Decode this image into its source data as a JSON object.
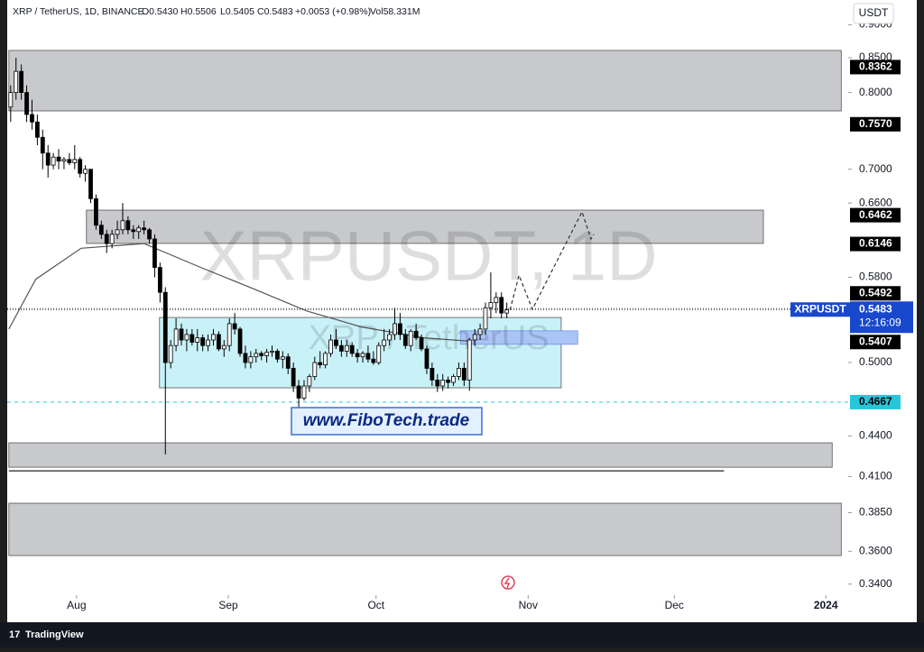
{
  "header": {
    "symbol": "XRP / TetherUS, 1D, BINANCE",
    "open": "O0.5430",
    "high": "H0.5506",
    "low": "L0.5405",
    "close": "C0.5483",
    "change": "+0.0053 (+0.98%)",
    "volume": "Vol58.331M"
  },
  "currency": "USDT",
  "footer": "TradingView",
  "promo": "www.FiboTech.trade",
  "chart_data": {
    "type": "candlestick",
    "title": "XRPUSDT, 1D",
    "subtitle": "XRP / TetherUS",
    "log_scale": true,
    "xlim": [
      -2,
      157
    ],
    "xticks": [
      {
        "value": 12.35,
        "label": "Aug"
      },
      {
        "value": 40.8,
        "label": "Sep"
      },
      {
        "value": 68.5,
        "label": "Oct"
      },
      {
        "value": 97,
        "label": "Nov"
      },
      {
        "value": 124.4,
        "label": "Dec"
      },
      {
        "value": 152.8,
        "label": "2024"
      }
    ],
    "ylim": [
      0.3335,
      0.9398
    ],
    "yticks": [
      {
        "value": 0.9,
        "label": "0.9000"
      },
      {
        "value": 0.85,
        "label": "0.8500"
      },
      {
        "value": 0.8,
        "label": "0.8000"
      },
      {
        "value": 0.7,
        "label": "0.7000"
      },
      {
        "value": 0.66,
        "label": "0.6600"
      },
      {
        "value": 0.58,
        "label": "0.5800"
      },
      {
        "value": 0.5,
        "label": "0.5000"
      },
      {
        "value": 0.44,
        "label": "0.4400"
      },
      {
        "value": 0.41,
        "label": "0.4100"
      },
      {
        "value": 0.385,
        "label": "0.3850"
      },
      {
        "value": 0.36,
        "label": "0.3600"
      },
      {
        "value": 0.34,
        "label": "0.3400"
      }
    ],
    "up_color": "#ffffff",
    "down_color": "#000000",
    "ohlc": [
      [
        0.78,
        0.81,
        0.76,
        0.8
      ],
      [
        0.8,
        0.85,
        0.79,
        0.83
      ],
      [
        0.83,
        0.84,
        0.79,
        0.8
      ],
      [
        0.8,
        0.81,
        0.76,
        0.77
      ],
      [
        0.77,
        0.79,
        0.75,
        0.76
      ],
      [
        0.76,
        0.77,
        0.73,
        0.74
      ],
      [
        0.74,
        0.75,
        0.7,
        0.72
      ],
      [
        0.72,
        0.73,
        0.69,
        0.705
      ],
      [
        0.705,
        0.72,
        0.7,
        0.715
      ],
      [
        0.715,
        0.725,
        0.7,
        0.71
      ],
      [
        0.71,
        0.715,
        0.7,
        0.712
      ],
      [
        0.712,
        0.72,
        0.705,
        0.708
      ],
      [
        0.708,
        0.73,
        0.7,
        0.712
      ],
      [
        0.712,
        0.715,
        0.69,
        0.695
      ],
      [
        0.695,
        0.705,
        0.685,
        0.7
      ],
      [
        0.7,
        0.7,
        0.66,
        0.665
      ],
      [
        0.665,
        0.67,
        0.63,
        0.635
      ],
      [
        0.635,
        0.64,
        0.62,
        0.625
      ],
      [
        0.625,
        0.63,
        0.605,
        0.615
      ],
      [
        0.615,
        0.63,
        0.61,
        0.625
      ],
      [
        0.625,
        0.64,
        0.62,
        0.63
      ],
      [
        0.63,
        0.66,
        0.625,
        0.64
      ],
      [
        0.64,
        0.645,
        0.625,
        0.63
      ],
      [
        0.63,
        0.635,
        0.62,
        0.628
      ],
      [
        0.628,
        0.635,
        0.62,
        0.632
      ],
      [
        0.632,
        0.64,
        0.625,
        0.63
      ],
      [
        0.63,
        0.632,
        0.615,
        0.62
      ],
      [
        0.62,
        0.625,
        0.58,
        0.59
      ],
      [
        0.59,
        0.595,
        0.555,
        0.565
      ],
      [
        0.565,
        0.57,
        0.426,
        0.5
      ],
      [
        0.5,
        0.52,
        0.495,
        0.515
      ],
      [
        0.515,
        0.54,
        0.51,
        0.53
      ],
      [
        0.53,
        0.535,
        0.515,
        0.52
      ],
      [
        0.52,
        0.53,
        0.51,
        0.525
      ],
      [
        0.525,
        0.53,
        0.515,
        0.518
      ],
      [
        0.518,
        0.53,
        0.51,
        0.522
      ],
      [
        0.522,
        0.525,
        0.51,
        0.515
      ],
      [
        0.515,
        0.525,
        0.51,
        0.52
      ],
      [
        0.52,
        0.53,
        0.515,
        0.525
      ],
      [
        0.525,
        0.528,
        0.51,
        0.512
      ],
      [
        0.512,
        0.52,
        0.505,
        0.515
      ],
      [
        0.515,
        0.54,
        0.51,
        0.535
      ],
      [
        0.535,
        0.545,
        0.525,
        0.53
      ],
      [
        0.53,
        0.532,
        0.505,
        0.508
      ],
      [
        0.508,
        0.515,
        0.495,
        0.5
      ],
      [
        0.5,
        0.51,
        0.495,
        0.505
      ],
      [
        0.505,
        0.512,
        0.5,
        0.508
      ],
      [
        0.508,
        0.51,
        0.502,
        0.506
      ],
      [
        0.506,
        0.512,
        0.5,
        0.509
      ],
      [
        0.509,
        0.515,
        0.505,
        0.51
      ],
      [
        0.51,
        0.512,
        0.5,
        0.503
      ],
      [
        0.503,
        0.51,
        0.495,
        0.505
      ],
      [
        0.505,
        0.508,
        0.49,
        0.495
      ],
      [
        0.495,
        0.5,
        0.475,
        0.48
      ],
      [
        0.48,
        0.485,
        0.462,
        0.47
      ],
      [
        0.47,
        0.485,
        0.468,
        0.48
      ],
      [
        0.48,
        0.49,
        0.475,
        0.488
      ],
      [
        0.488,
        0.505,
        0.485,
        0.5
      ],
      [
        0.5,
        0.51,
        0.495,
        0.498
      ],
      [
        0.498,
        0.51,
        0.495,
        0.508
      ],
      [
        0.508,
        0.525,
        0.505,
        0.52
      ],
      [
        0.52,
        0.53,
        0.512,
        0.515
      ],
      [
        0.515,
        0.52,
        0.505,
        0.51
      ],
      [
        0.51,
        0.52,
        0.505,
        0.515
      ],
      [
        0.515,
        0.518,
        0.505,
        0.508
      ],
      [
        0.508,
        0.512,
        0.5,
        0.505
      ],
      [
        0.505,
        0.51,
        0.5,
        0.508
      ],
      [
        0.508,
        0.515,
        0.5,
        0.503
      ],
      [
        0.503,
        0.51,
        0.498,
        0.5
      ],
      [
        0.5,
        0.518,
        0.498,
        0.515
      ],
      [
        0.515,
        0.53,
        0.51,
        0.52
      ],
      [
        0.52,
        0.53,
        0.515,
        0.525
      ],
      [
        0.525,
        0.55,
        0.52,
        0.535
      ],
      [
        0.535,
        0.545,
        0.52,
        0.525
      ],
      [
        0.525,
        0.53,
        0.512,
        0.515
      ],
      [
        0.515,
        0.53,
        0.51,
        0.528
      ],
      [
        0.528,
        0.535,
        0.52,
        0.522
      ],
      [
        0.522,
        0.525,
        0.51,
        0.512
      ],
      [
        0.512,
        0.515,
        0.49,
        0.495
      ],
      [
        0.495,
        0.5,
        0.48,
        0.485
      ],
      [
        0.485,
        0.49,
        0.475,
        0.48
      ],
      [
        0.48,
        0.49,
        0.476,
        0.485
      ],
      [
        0.485,
        0.488,
        0.478,
        0.483
      ],
      [
        0.483,
        0.49,
        0.48,
        0.488
      ],
      [
        0.488,
        0.5,
        0.485,
        0.495
      ],
      [
        0.495,
        0.5,
        0.48,
        0.485
      ],
      [
        0.485,
        0.522,
        0.476,
        0.52
      ],
      [
        0.52,
        0.53,
        0.515,
        0.525
      ],
      [
        0.525,
        0.535,
        0.52,
        0.53
      ],
      [
        0.53,
        0.555,
        0.525,
        0.55
      ],
      [
        0.55,
        0.585,
        0.54,
        0.555
      ],
      [
        0.555,
        0.565,
        0.545,
        0.56
      ],
      [
        0.56,
        0.565,
        0.54,
        0.545
      ],
      [
        0.545,
        0.555,
        0.54,
        0.548
      ]
    ],
    "ma": {
      "color": "#555555",
      "x": [
        -0.34,
        4.7,
        13.2,
        25,
        35.2,
        45.3,
        55.5,
        65.7,
        77.5,
        86
      ],
      "values": [
        0.53,
        0.578,
        0.61,
        0.615,
        0.591,
        0.569,
        0.547,
        0.532,
        0.522,
        0.519
      ]
    },
    "projection": {
      "color": "#333333",
      "x": [
        93.6,
        95.3,
        97.8,
        107.1,
        108.8,
        109.3
      ],
      "values": [
        0.548,
        0.582,
        0.5485,
        0.65,
        0.62,
        0.625
      ]
    },
    "zones": [
      {
        "top": 0.8608,
        "bottom": 0.7748,
        "x": [
          -0.34,
          155.7
        ],
        "color": "#c8c9cc"
      },
      {
        "top": 0.6519,
        "bottom": 0.6152,
        "x": [
          14.2,
          141.1
        ],
        "color": "#c8c9cc"
      },
      {
        "top": 0.5408,
        "bottom": 0.4785,
        "x": [
          27.9,
          103.2
        ],
        "color": "#c9f1f8"
      },
      {
        "top": 0.5284,
        "bottom": 0.5161,
        "x": [
          84.3,
          106.3
        ],
        "color": "#a9c4f5"
      },
      {
        "top": 0.4348,
        "bottom": 0.4167,
        "x": [
          -0.34,
          154
        ],
        "color": "#c8c9cc"
      },
      {
        "top": 0.3914,
        "bottom": 0.3573,
        "x": [
          -0.34,
          155.7
        ],
        "color": "#c8c9cc"
      }
    ],
    "hline": {
      "value": 0.4141,
      "x": [
        -0.34,
        133.7
      ]
    },
    "price_labels": [
      0.8362,
      {
        "value": 0.757,
        "label": "0.7570"
      },
      0.6462,
      0.6146,
      0.5492,
      0.5407,
      0.4667
    ],
    "current": {
      "name": "XRPUSDT",
      "value": 0.5483,
      "countdown": "12:16:09",
      "color": "#1848cc"
    },
    "support_line": {
      "value": 0.4667,
      "color": "#26c6da"
    }
  }
}
